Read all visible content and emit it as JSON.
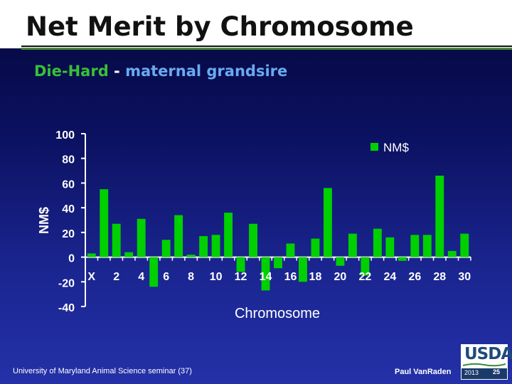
{
  "slide": {
    "title": "Net Merit by Chromosome",
    "subtitle_part1": "Die-Hard",
    "subtitle_part2": " - ",
    "subtitle_part3": "maternal grandsire",
    "footer_left": "University of Maryland Animal Science seminar (37)",
    "footer_right": "Paul VanRaden",
    "logo_text": "USDA",
    "logo_year": "2013",
    "page_number": "25"
  },
  "colors": {
    "bar": "#00d000",
    "axis": "#ffffff",
    "text": "#ffffff",
    "background": "#0b1160"
  },
  "chart_data": {
    "type": "bar",
    "xlabel": "Chromosome",
    "ylabel": "NM$",
    "ylim": [
      -40,
      100
    ],
    "yticks": [
      -40,
      -20,
      0,
      20,
      40,
      60,
      80,
      100
    ],
    "legend": [
      {
        "name": "NM$",
        "position": "top-right"
      }
    ],
    "grid": false,
    "categories": [
      "X",
      "1",
      "2",
      "3",
      "4",
      "5",
      "6",
      "7",
      "8",
      "9",
      "10",
      "11",
      "12",
      "13",
      "14",
      "15",
      "16",
      "17",
      "18",
      "19",
      "20",
      "21",
      "22",
      "23",
      "24",
      "25",
      "26",
      "27",
      "28",
      "29",
      "30"
    ],
    "tick_labels": [
      "X",
      "2",
      "4",
      "6",
      "8",
      "10",
      "12",
      "14",
      "16",
      "18",
      "20",
      "22",
      "24",
      "26",
      "28",
      "30"
    ],
    "series": [
      {
        "name": "NM$",
        "values": [
          3,
          55,
          27,
          4,
          31,
          -24,
          14,
          34,
          2,
          17,
          18,
          36,
          -12,
          27,
          -27,
          -9,
          11,
          -20,
          15,
          56,
          -7,
          19,
          -15,
          23,
          16,
          -3,
          18,
          18,
          66,
          5,
          19
        ]
      }
    ]
  }
}
